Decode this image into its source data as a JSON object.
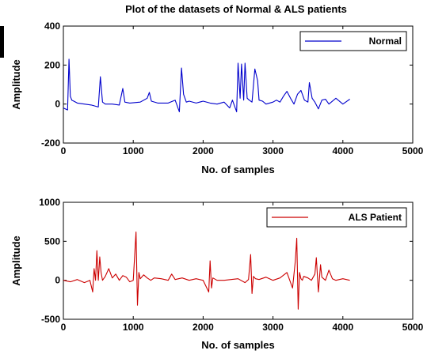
{
  "chart_data": [
    {
      "type": "line",
      "title": "Plot of the datasets of Normal & ALS patients",
      "xlabel": "No. of samples",
      "ylabel": "Amplitude",
      "xlim": [
        0,
        5000
      ],
      "ylim": [
        -200,
        400
      ],
      "xticks": [
        "0",
        "1000",
        "2000",
        "3000",
        "4000",
        "5000"
      ],
      "yticks": [
        "-200",
        "0",
        "200",
        "400"
      ],
      "grid": false,
      "legend_position": "top-right",
      "series": [
        {
          "name": "Normal",
          "color": "#0000cc",
          "x": [
            0,
            60,
            80,
            100,
            120,
            150,
            200,
            300,
            400,
            500,
            530,
            560,
            600,
            700,
            800,
            850,
            880,
            950,
            1100,
            1200,
            1230,
            1260,
            1350,
            1500,
            1600,
            1660,
            1690,
            1720,
            1760,
            1800,
            1900,
            2000,
            2100,
            2200,
            2300,
            2380,
            2420,
            2480,
            2500,
            2530,
            2550,
            2580,
            2600,
            2630,
            2660,
            2700,
            2740,
            2780,
            2800,
            2850,
            2900,
            3000,
            3050,
            3100,
            3150,
            3200,
            3250,
            3300,
            3350,
            3400,
            3450,
            3500,
            3520,
            3560,
            3600,
            3650,
            3700,
            3750,
            3800,
            3900,
            4000,
            4100
          ],
          "y": [
            -20,
            -30,
            230,
            40,
            20,
            15,
            5,
            0,
            -5,
            -15,
            140,
            10,
            0,
            0,
            -5,
            80,
            10,
            5,
            10,
            30,
            60,
            15,
            5,
            5,
            20,
            -40,
            185,
            50,
            10,
            15,
            5,
            15,
            5,
            0,
            10,
            -20,
            20,
            -40,
            210,
            30,
            205,
            20,
            210,
            30,
            20,
            10,
            180,
            120,
            20,
            15,
            0,
            10,
            20,
            10,
            40,
            65,
            30,
            0,
            50,
            70,
            20,
            10,
            110,
            30,
            10,
            -25,
            20,
            25,
            0,
            30,
            0,
            25
          ]
        }
      ]
    },
    {
      "type": "line",
      "title": "",
      "xlabel": "No. of samples",
      "ylabel": "Amplitude",
      "xlim": [
        0,
        5000
      ],
      "ylim": [
        -500,
        1000
      ],
      "xticks": [
        "0",
        "1000",
        "2000",
        "3000",
        "4000",
        "5000"
      ],
      "yticks": [
        "-500",
        "0",
        "500",
        "1000"
      ],
      "grid": false,
      "legend_position": "top-right",
      "series": [
        {
          "name": "ALS Patient",
          "color": "#cc0000",
          "x": [
            0,
            100,
            200,
            300,
            380,
            420,
            440,
            460,
            480,
            500,
            520,
            540,
            560,
            600,
            650,
            700,
            750,
            800,
            850,
            900,
            950,
            1000,
            1040,
            1060,
            1080,
            1100,
            1150,
            1200,
            1250,
            1300,
            1400,
            1500,
            1550,
            1600,
            1700,
            1800,
            1900,
            2000,
            2080,
            2100,
            2120,
            2140,
            2200,
            2300,
            2400,
            2500,
            2600,
            2650,
            2680,
            2700,
            2720,
            2750,
            2800,
            2900,
            3000,
            3100,
            3200,
            3280,
            3320,
            3340,
            3360,
            3380,
            3400,
            3420,
            3440,
            3500,
            3550,
            3600,
            3620,
            3650,
            3680,
            3700,
            3750,
            3800,
            3850,
            3900,
            4000,
            4100
          ],
          "y": [
            0,
            -20,
            10,
            -30,
            0,
            -150,
            150,
            0,
            380,
            0,
            300,
            100,
            0,
            50,
            150,
            30,
            80,
            0,
            60,
            40,
            -20,
            0,
            620,
            -320,
            100,
            20,
            70,
            30,
            0,
            30,
            20,
            0,
            80,
            10,
            30,
            0,
            20,
            0,
            -150,
            250,
            -100,
            30,
            0,
            0,
            10,
            20,
            -30,
            10,
            330,
            -170,
            50,
            20,
            10,
            40,
            0,
            30,
            100,
            -100,
            250,
            540,
            -370,
            100,
            20,
            0,
            50,
            30,
            0,
            80,
            290,
            -150,
            200,
            40,
            0,
            130,
            20,
            0,
            20,
            0
          ]
        }
      ]
    }
  ]
}
